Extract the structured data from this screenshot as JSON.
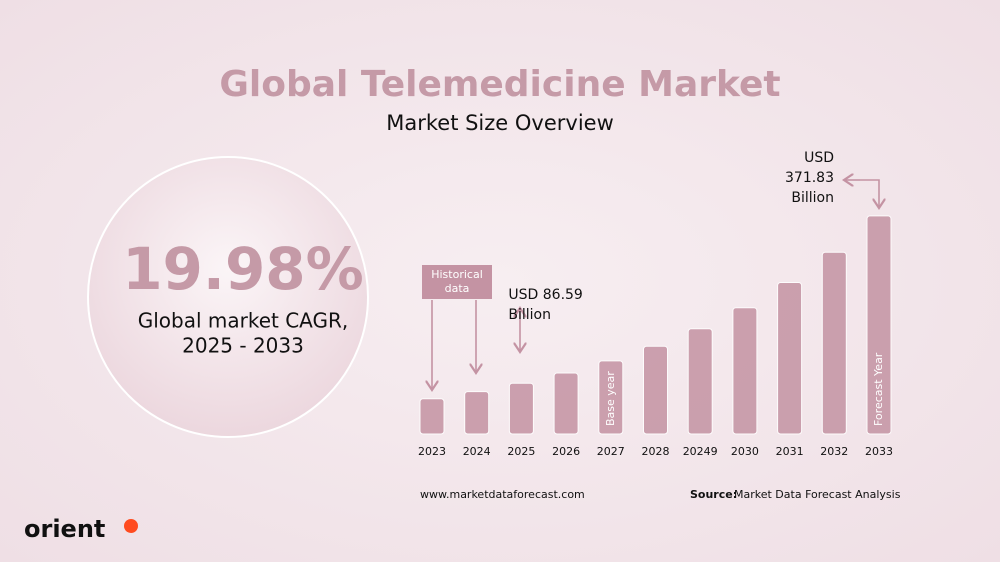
{
  "chart_data": {
    "type": "bar",
    "title": "Global Telemedicine Market",
    "subtitle": "Market Size Overview",
    "categories": [
      "2023",
      "2024",
      "2025",
      "2026",
      "2027",
      "2028",
      "20249",
      "2030",
      "2031",
      "2032",
      "2033"
    ],
    "values": [
      60.15,
      72.17,
      86.59,
      103.89,
      124.65,
      149.56,
      179.44,
      215.3,
      258.3,
      309.9,
      371.83
    ],
    "color": "#c493a3",
    "ylim": [
      0,
      375
    ],
    "annotations": [
      {
        "x": "2025",
        "lines": [
          "USD 86.59",
          "Billion"
        ]
      },
      {
        "x": "2033",
        "lines": [
          "USD",
          "371.83",
          "Billion"
        ]
      }
    ],
    "historical_label": [
      "Historical",
      "data"
    ],
    "base_year_label": "Base year",
    "forecast_label": "Forecast Year",
    "cagr": "19.98%",
    "cagr_caption": [
      "Global market CAGR,",
      "2025 - 2033"
    ],
    "website": "www.marketdataforecast.com",
    "source_label": "Source:",
    "source": "Market Data Forecast Analysis",
    "brand": "orient"
  }
}
